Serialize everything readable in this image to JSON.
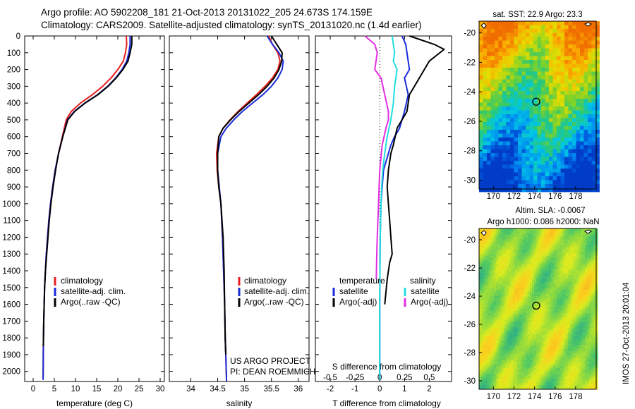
{
  "header": {
    "line1": "Argo profile: AO 5902208_181 21-Oct-2013 20131022_205 24.673S 174.159E",
    "line2": "Climatology: CARS2009. Satellite-adjusted climatology: synTS_20131020.nc (1.4d earlier)"
  },
  "chart_data": [
    {
      "type": "line",
      "id": "temperature",
      "xlabel": "temperature (deg C)",
      "ylabel": "",
      "xlim": [
        -2,
        31
      ],
      "ylim": [
        2060,
        0
      ],
      "xticks": [
        0,
        5,
        10,
        15,
        20,
        25,
        30
      ],
      "yticks": [
        0,
        100,
        200,
        300,
        400,
        500,
        600,
        700,
        800,
        900,
        1000,
        1100,
        1200,
        1300,
        1400,
        1500,
        1600,
        1700,
        1800,
        1900,
        2000
      ],
      "legend": [
        "climatology",
        "satellite-adj. clim.",
        "Argo(..raw -QC)"
      ],
      "series": [
        {
          "name": "climatology",
          "color": "#e8201c",
          "x": [
            22.0,
            22.1,
            21.8,
            21.3,
            20.0,
            18.4,
            16.4,
            14.0,
            11.2,
            9.0,
            7.8,
            6.9,
            6.0,
            5.2,
            4.6,
            4.1,
            3.7,
            3.4,
            3.1,
            2.9,
            2.7,
            2.6,
            2.5,
            2.4,
            2.35
          ],
          "depth": [
            0,
            50,
            100,
            150,
            200,
            250,
            300,
            350,
            400,
            450,
            500,
            600,
            700,
            800,
            900,
            1000,
            1100,
            1200,
            1300,
            1400,
            1500,
            1600,
            1700,
            1850,
            2050
          ]
        },
        {
          "name": "satellite-adj. clim.",
          "color": "#1a2bd8",
          "x": [
            22.9,
            22.9,
            22.6,
            22.1,
            21.0,
            19.5,
            17.6,
            15.2,
            12.2,
            9.7,
            8.1,
            7.0,
            6.0,
            5.2,
            4.6,
            4.1,
            3.7,
            3.4,
            3.1,
            2.9,
            2.7,
            2.6,
            2.5,
            2.4,
            2.35
          ],
          "depth": [
            0,
            50,
            100,
            150,
            200,
            250,
            300,
            350,
            400,
            450,
            500,
            600,
            700,
            800,
            900,
            1000,
            1100,
            1200,
            1300,
            1400,
            1500,
            1600,
            1700,
            1850,
            2050
          ]
        },
        {
          "name": "Argo(..raw -QC)",
          "color": "#000000",
          "x": [
            23.3,
            23.3,
            22.9,
            22.4,
            21.2,
            19.6,
            17.7,
            15.3,
            12.3,
            9.8,
            8.2,
            7.0,
            6.0,
            5.3,
            4.7,
            4.2,
            3.8,
            3.5,
            3.2,
            2.9,
            2.7,
            2.6,
            2.5,
            2.4
          ],
          "depth": [
            0,
            50,
            100,
            150,
            200,
            250,
            300,
            350,
            400,
            450,
            500,
            600,
            700,
            800,
            900,
            1000,
            1100,
            1200,
            1300,
            1400,
            1500,
            1600,
            1700,
            1850
          ]
        }
      ]
    },
    {
      "type": "line",
      "id": "salinity",
      "xlabel": "salinity",
      "xlim": [
        33.6,
        36.2
      ],
      "ylim": [
        2060,
        0
      ],
      "xticks": [
        34,
        34.5,
        35,
        35.5,
        36
      ],
      "legend": [
        "climatology",
        "satellite-adj. clim.",
        "Argo(..raw -QC)"
      ],
      "annotation": [
        "US ARGO PROJECT",
        "PI: DEAN ROEMMICH"
      ],
      "series": [
        {
          "name": "climatology",
          "color": "#e8201c",
          "x": [
            35.45,
            35.52,
            35.62,
            35.66,
            35.62,
            35.52,
            35.38,
            35.22,
            35.05,
            34.88,
            34.73,
            34.6,
            34.52,
            34.48,
            34.49,
            34.52,
            34.56,
            34.59,
            34.61,
            34.63,
            34.64,
            34.65,
            34.66,
            34.665
          ],
          "depth": [
            0,
            50,
            100,
            150,
            200,
            250,
            300,
            350,
            400,
            450,
            500,
            550,
            600,
            700,
            800,
            900,
            1000,
            1200,
            1400,
            1600,
            1800,
            1900,
            2000,
            2060
          ]
        },
        {
          "name": "satellite-adj. clim.",
          "color": "#1a2bd8",
          "x": [
            35.42,
            35.52,
            35.64,
            35.72,
            35.7,
            35.62,
            35.5,
            35.34,
            35.15,
            34.96,
            34.8,
            34.66,
            34.56,
            34.5,
            34.5,
            34.53,
            34.56,
            34.59,
            34.61,
            34.63,
            34.64,
            34.65,
            34.66,
            34.665
          ],
          "depth": [
            0,
            50,
            100,
            150,
            200,
            250,
            300,
            350,
            400,
            450,
            500,
            550,
            600,
            700,
            800,
            900,
            1000,
            1200,
            1400,
            1600,
            1800,
            1900,
            2000,
            2060
          ]
        },
        {
          "name": "Argo(..raw -QC)",
          "color": "#000000",
          "x": [
            35.5,
            35.6,
            35.7,
            35.69,
            35.64,
            35.55,
            35.42,
            35.26,
            35.08,
            34.9,
            34.74,
            34.6,
            34.52,
            34.5,
            34.5,
            34.52,
            34.56,
            34.6,
            34.62,
            34.63,
            34.64,
            34.65
          ],
          "depth": [
            0,
            50,
            100,
            150,
            200,
            250,
            300,
            350,
            400,
            450,
            500,
            550,
            600,
            700,
            800,
            900,
            1000,
            1200,
            1400,
            1600,
            1800,
            1900
          ]
        }
      ]
    },
    {
      "type": "line",
      "id": "difference",
      "xlabel_top": "S difference from climatology",
      "xlabel": "T difference from climatology",
      "xlim_T": [
        -2.6,
        2.9
      ],
      "xticks_T": [
        -2,
        -1,
        0,
        1,
        2
      ],
      "xticks_S": [
        -0.5,
        -0.25,
        0,
        0.25,
        0.5
      ],
      "ylim": [
        2060,
        0
      ],
      "legend_left_title": "temperature",
      "legend_right_title": "salinity",
      "legend": [
        "satellite",
        "Argo(-adj)",
        "satellite",
        "Argo(-adj)"
      ],
      "series": [
        {
          "name": "satellite",
          "color": "#1a2bd8",
          "x": [
            0.9,
            1.05,
            1.1,
            1.2,
            1.0,
            1.15,
            1.0,
            0.9,
            0.8,
            0.6,
            0.45,
            0.35,
            0.25,
            0.15,
            0.1,
            0.05,
            0.02,
            0.0,
            0.0
          ],
          "depth": [
            0,
            50,
            100,
            200,
            250,
            350,
            450,
            500,
            550,
            600,
            650,
            700,
            750,
            800,
            900,
            1000,
            1200,
            1600,
            2050
          ]
        },
        {
          "name": "Argo(-adj)",
          "color": "#000000",
          "x": [
            1.2,
            2.2,
            2.6,
            2.0,
            1.6,
            1.4,
            1.2,
            1.1,
            0.9,
            0.7,
            0.55,
            0.45,
            0.35,
            0.3,
            0.35,
            0.4,
            0.45,
            0.5,
            0.4,
            0.3,
            0.2
          ],
          "depth": [
            0,
            50,
            80,
            150,
            250,
            300,
            350,
            450,
            500,
            550,
            650,
            700,
            800,
            900,
            1000,
            1100,
            1200,
            1300,
            1350,
            1450,
            1600
          ]
        },
        {
          "name": "satellite",
          "color": "#22dde0",
          "x": [
            0.5,
            0.55,
            0.6,
            0.55,
            0.7,
            0.6,
            0.55,
            0.45,
            0.3,
            0.2,
            0.12,
            0.08,
            0.05,
            0.02,
            0.0,
            0.0
          ],
          "depth": [
            0,
            50,
            100,
            150,
            200,
            300,
            400,
            500,
            600,
            700,
            800,
            900,
            1000,
            1200,
            1600,
            2050
          ]
        },
        {
          "name": "Argo(-adj)",
          "color": "#e22ee2",
          "x": [
            -0.6,
            -0.2,
            -0.1,
            -0.2,
            0.05,
            0.2,
            0.35,
            0.35,
            0.25,
            0.1,
            0.0,
            -0.05,
            -0.1,
            -0.12,
            -0.14
          ],
          "depth": [
            0,
            50,
            100,
            200,
            250,
            350,
            450,
            500,
            550,
            650,
            800,
            1000,
            1200,
            1300,
            1450
          ]
        }
      ]
    },
    {
      "type": "heatmap",
      "id": "sst-map",
      "title": "sat. SST: 22.9 Argo: 23.3",
      "xticks": [
        170,
        172,
        174,
        176,
        178
      ],
      "yticks": [
        -20,
        -22,
        -24,
        -26,
        -28,
        -30
      ],
      "argo_position": {
        "lon": 174.159,
        "lat": -24.673
      }
    },
    {
      "type": "heatmap",
      "id": "sla-map",
      "title": [
        "Altim. SLA: -0.0067",
        "Argo h1000: 0.086 h2000: NaN"
      ],
      "xticks": [
        170,
        172,
        174,
        176,
        178
      ],
      "yticks": [
        -20,
        -22,
        -24,
        -26,
        -28,
        -30
      ],
      "argo_position": {
        "lon": 174.159,
        "lat": -24.673
      }
    }
  ],
  "side_label": "IMOS 27-Oct-2013 20:01:04"
}
